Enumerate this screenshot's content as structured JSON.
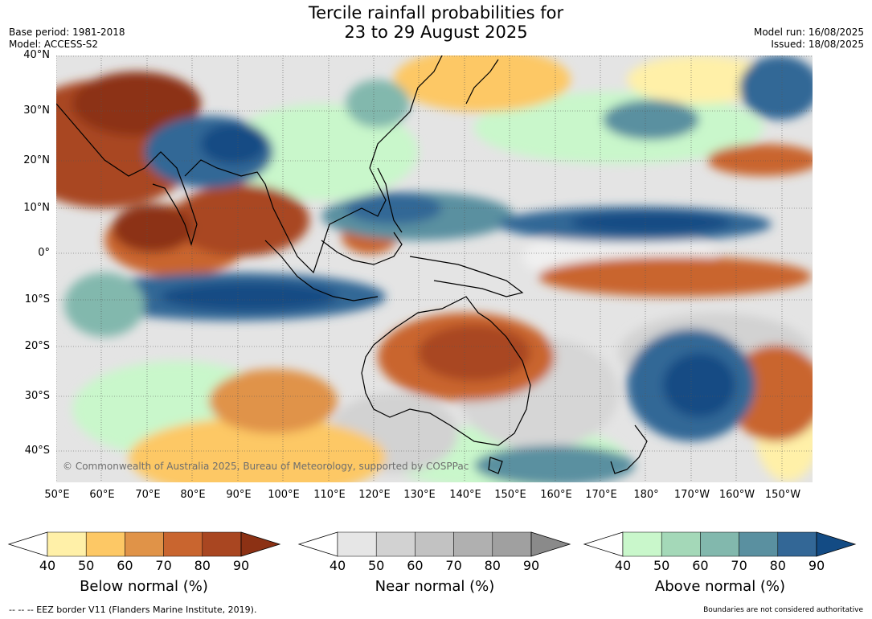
{
  "header": {
    "title_line1": "Tercile rainfall probabilities for",
    "title_line2": "23 to 29 August 2025",
    "base_period": "Base period: 1981-2018",
    "model": "Model: ACCESS-S2",
    "model_run": "Model run: 16/08/2025",
    "issued": "Issued: 18/08/2025"
  },
  "map": {
    "lat_labels": [
      "40°N",
      "30°N",
      "20°N",
      "10°N",
      "0°",
      "10°S",
      "20°S",
      "30°S",
      "40°S"
    ],
    "lon_labels": [
      "50°E",
      "60°E",
      "70°E",
      "80°E",
      "90°E",
      "100°E",
      "110°E",
      "120°E",
      "130°E",
      "140°E",
      "150°E",
      "160°E",
      "170°E",
      "180°",
      "170°W",
      "160°W",
      "150°W"
    ],
    "copyright": "© Commonwealth of Australia 2025, Bureau of Meteorology, supported by COSPPac"
  },
  "legend": {
    "below": {
      "title": "Below normal (%)",
      "ticks": [
        "40",
        "50",
        "60",
        "70",
        "80",
        "90"
      ],
      "colors": [
        "#fff0a8",
        "#fdc865",
        "#e09348",
        "#c9652f",
        "#a94621",
        "#8c3114"
      ]
    },
    "near": {
      "title": "Near normal (%)",
      "ticks": [
        "40",
        "50",
        "60",
        "70",
        "80",
        "90"
      ],
      "colors": [
        "#e6e6e6",
        "#d2d2d2",
        "#c2c2c2",
        "#b0b0b0",
        "#a0a0a0",
        "#8a8a8a"
      ]
    },
    "above": {
      "title": "Above normal (%)",
      "ticks": [
        "40",
        "50",
        "60",
        "70",
        "80",
        "90"
      ],
      "colors": [
        "#c9f7cb",
        "#a4d8b8",
        "#82b8ad",
        "#5a90a0",
        "#336796",
        "#134b84"
      ]
    }
  },
  "footer": {
    "eez_note": "--  --  -- EEZ border V11 (Flanders Marine Institute, 2019).",
    "boundaries_note": "Boundaries are not considered authoritative"
  }
}
